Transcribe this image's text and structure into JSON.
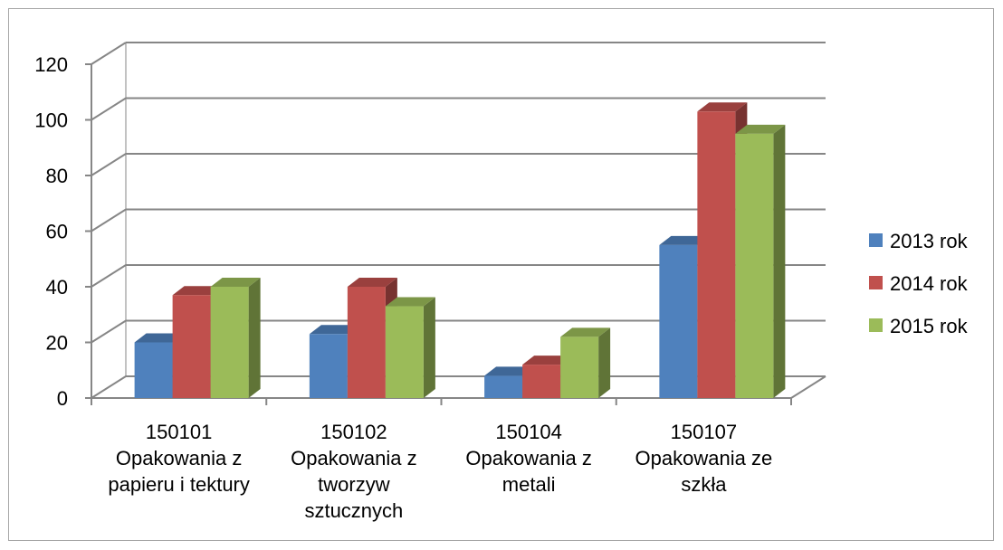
{
  "chart_data": {
    "type": "bar",
    "categories": [
      [
        "150101",
        "Opakowania z",
        "papieru i tektury"
      ],
      [
        "150102",
        "Opakowania z",
        "tworzyw",
        "sztucznych"
      ],
      [
        "150104",
        "Opakowania z",
        "metali"
      ],
      [
        "150107",
        "Opakowania ze",
        "szkła"
      ]
    ],
    "series": [
      {
        "name": "2013 rok",
        "values": [
          20,
          23,
          8,
          55
        ],
        "color": "#4f81bd"
      },
      {
        "name": "2014 rok",
        "values": [
          37,
          40,
          12,
          103
        ],
        "color": "#c0504d"
      },
      {
        "name": "2015 rok",
        "values": [
          40,
          33,
          22,
          95
        ],
        "color": "#9bbb59"
      }
    ],
    "ylim": [
      0,
      120
    ],
    "yticks": [
      0,
      20,
      40,
      60,
      80,
      100,
      120
    ],
    "grid": true,
    "legend_position": "right",
    "style": "3d-clustered-column"
  }
}
